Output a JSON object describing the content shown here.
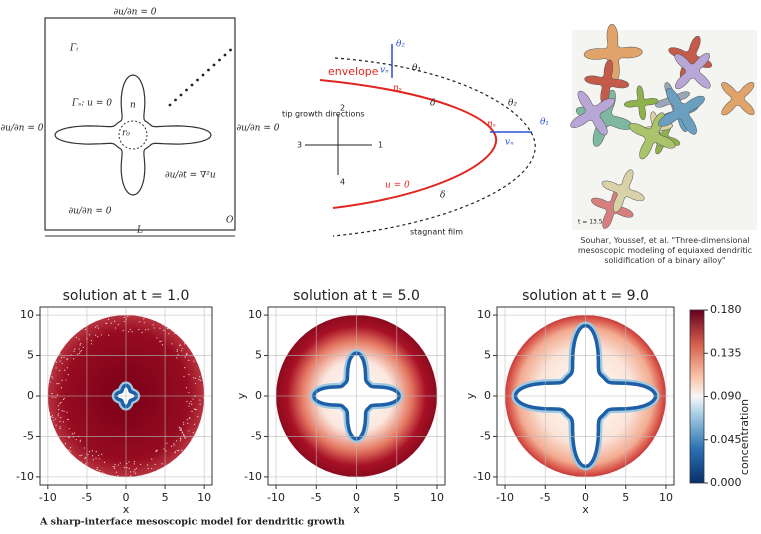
{
  "figure": {
    "schematic": {
      "bc_top": "∂u/∂n = 0",
      "bc_left": "∂u/∂n = 0",
      "bc_right": "∂u/∂n = 0",
      "bc_bottom": "∂u/∂n = 0",
      "gamma_i": "Γᵢ",
      "gamma_s": "Γₛ: u = 0",
      "equation": "∂u/∂t = ∇²u",
      "length": "L",
      "origin": "O",
      "radius": "r₀",
      "normal": "n"
    },
    "envelope_diagram": {
      "envelope": "envelope",
      "interface": "u = 0",
      "film": "stagnant film",
      "directions": "tip growth directions",
      "dir_1": "1",
      "dir_2": "2",
      "dir_3": "3",
      "dir_4": "4",
      "delta_1": "δ",
      "delta_2": "δ",
      "theta_1a": "θ₁",
      "theta_2a": "θ₂",
      "theta_1b": "θ₁",
      "theta_2b": "θ₂",
      "normal_a": "nₛ",
      "normal_b": "nₛ",
      "velocity_a": "vₙ",
      "velocity_b": "vₙ"
    },
    "rendering": {
      "time": "t = 13.5",
      "citation": "Souhar, Youssef, et al. \"Three-dimensional mesoscopic modeling of equiaxed dendritic solidification of a binary alloy\""
    },
    "plots": [
      {
        "title": "solution at t = 1.0",
        "xlabel": "x",
        "xlim": [
          -11,
          11
        ],
        "ylim": [
          -11,
          11
        ],
        "xticks": [
          -10,
          -5,
          0,
          5,
          10
        ],
        "yticks": [
          -10,
          -5,
          0,
          5,
          10
        ]
      },
      {
        "title": "solution at t = 5.0",
        "xlabel": "x",
        "ylabel": "y",
        "xlim": [
          -11,
          11
        ],
        "ylim": [
          -11,
          11
        ],
        "xticks": [
          -10,
          -5,
          0,
          5,
          10
        ],
        "yticks": [
          -10,
          -5,
          0,
          5,
          10
        ]
      },
      {
        "title": "solution at t = 9.0",
        "xlabel": "x",
        "ylabel": "y",
        "xlim": [
          -11,
          11
        ],
        "ylim": [
          -11,
          11
        ],
        "xticks": [
          -10,
          -5,
          0,
          5,
          10
        ],
        "yticks": [
          -10,
          -5,
          0,
          5,
          10
        ]
      }
    ],
    "colorbar": {
      "label": "concentration",
      "range": [
        0,
        0.18
      ],
      "ticks": [
        {
          "value": 0,
          "label": "0.000"
        },
        {
          "value": 0.045,
          "label": "0.045"
        },
        {
          "value": 0.09,
          "label": "0.090"
        },
        {
          "value": 0.135,
          "label": "0.135"
        },
        {
          "value": 0.18,
          "label": "0.180"
        }
      ]
    },
    "caption": "A sharp-interface mesoscopic model for dendritic growth"
  }
}
